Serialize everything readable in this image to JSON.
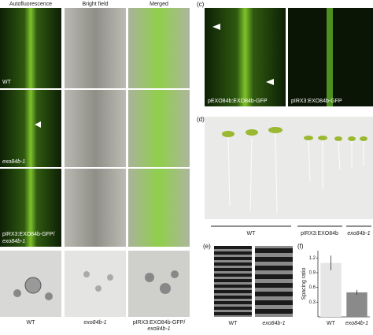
{
  "panel_a": {
    "columns": [
      "Autofluorescence",
      "Bright field",
      "Merged"
    ],
    "rows": [
      [
        "WT"
      ],
      [
        "exo84b-1"
      ],
      [
        "pIRX3:EXO84b-GFP/",
        "exo84b-1"
      ]
    ]
  },
  "panel_b": {
    "labels": [
      [
        "WT"
      ],
      [
        "exo84b-1"
      ],
      [
        "pIRX3:EXO84b-GFP/",
        "exo84b-1"
      ]
    ]
  },
  "panel_c": {
    "letter": "(c)",
    "labels": [
      "pEXO84b:EXO84b-GFP",
      "pIRX3:EXO84b-GFP"
    ]
  },
  "panel_d": {
    "letter": "(d)",
    "labels": [
      "WT",
      "pIRX3:EXO84b",
      "exo84b-1"
    ]
  },
  "panel_e": {
    "letter": "(e)",
    "labels": [
      "WT",
      "exo84b-1"
    ]
  },
  "chart_data": {
    "type": "bar",
    "letter": "(f)",
    "y_label": "Spacing ratio",
    "categories": [
      "WT",
      "exo84b-1"
    ],
    "values": [
      1.1,
      0.5
    ],
    "errors": [
      0.15,
      0.05
    ],
    "colors": [
      "#e6e6e6",
      "#8a8a8a"
    ],
    "ylim": [
      0,
      1.35
    ],
    "yticks": [
      0.3,
      0.6,
      0.9,
      1.2
    ]
  }
}
